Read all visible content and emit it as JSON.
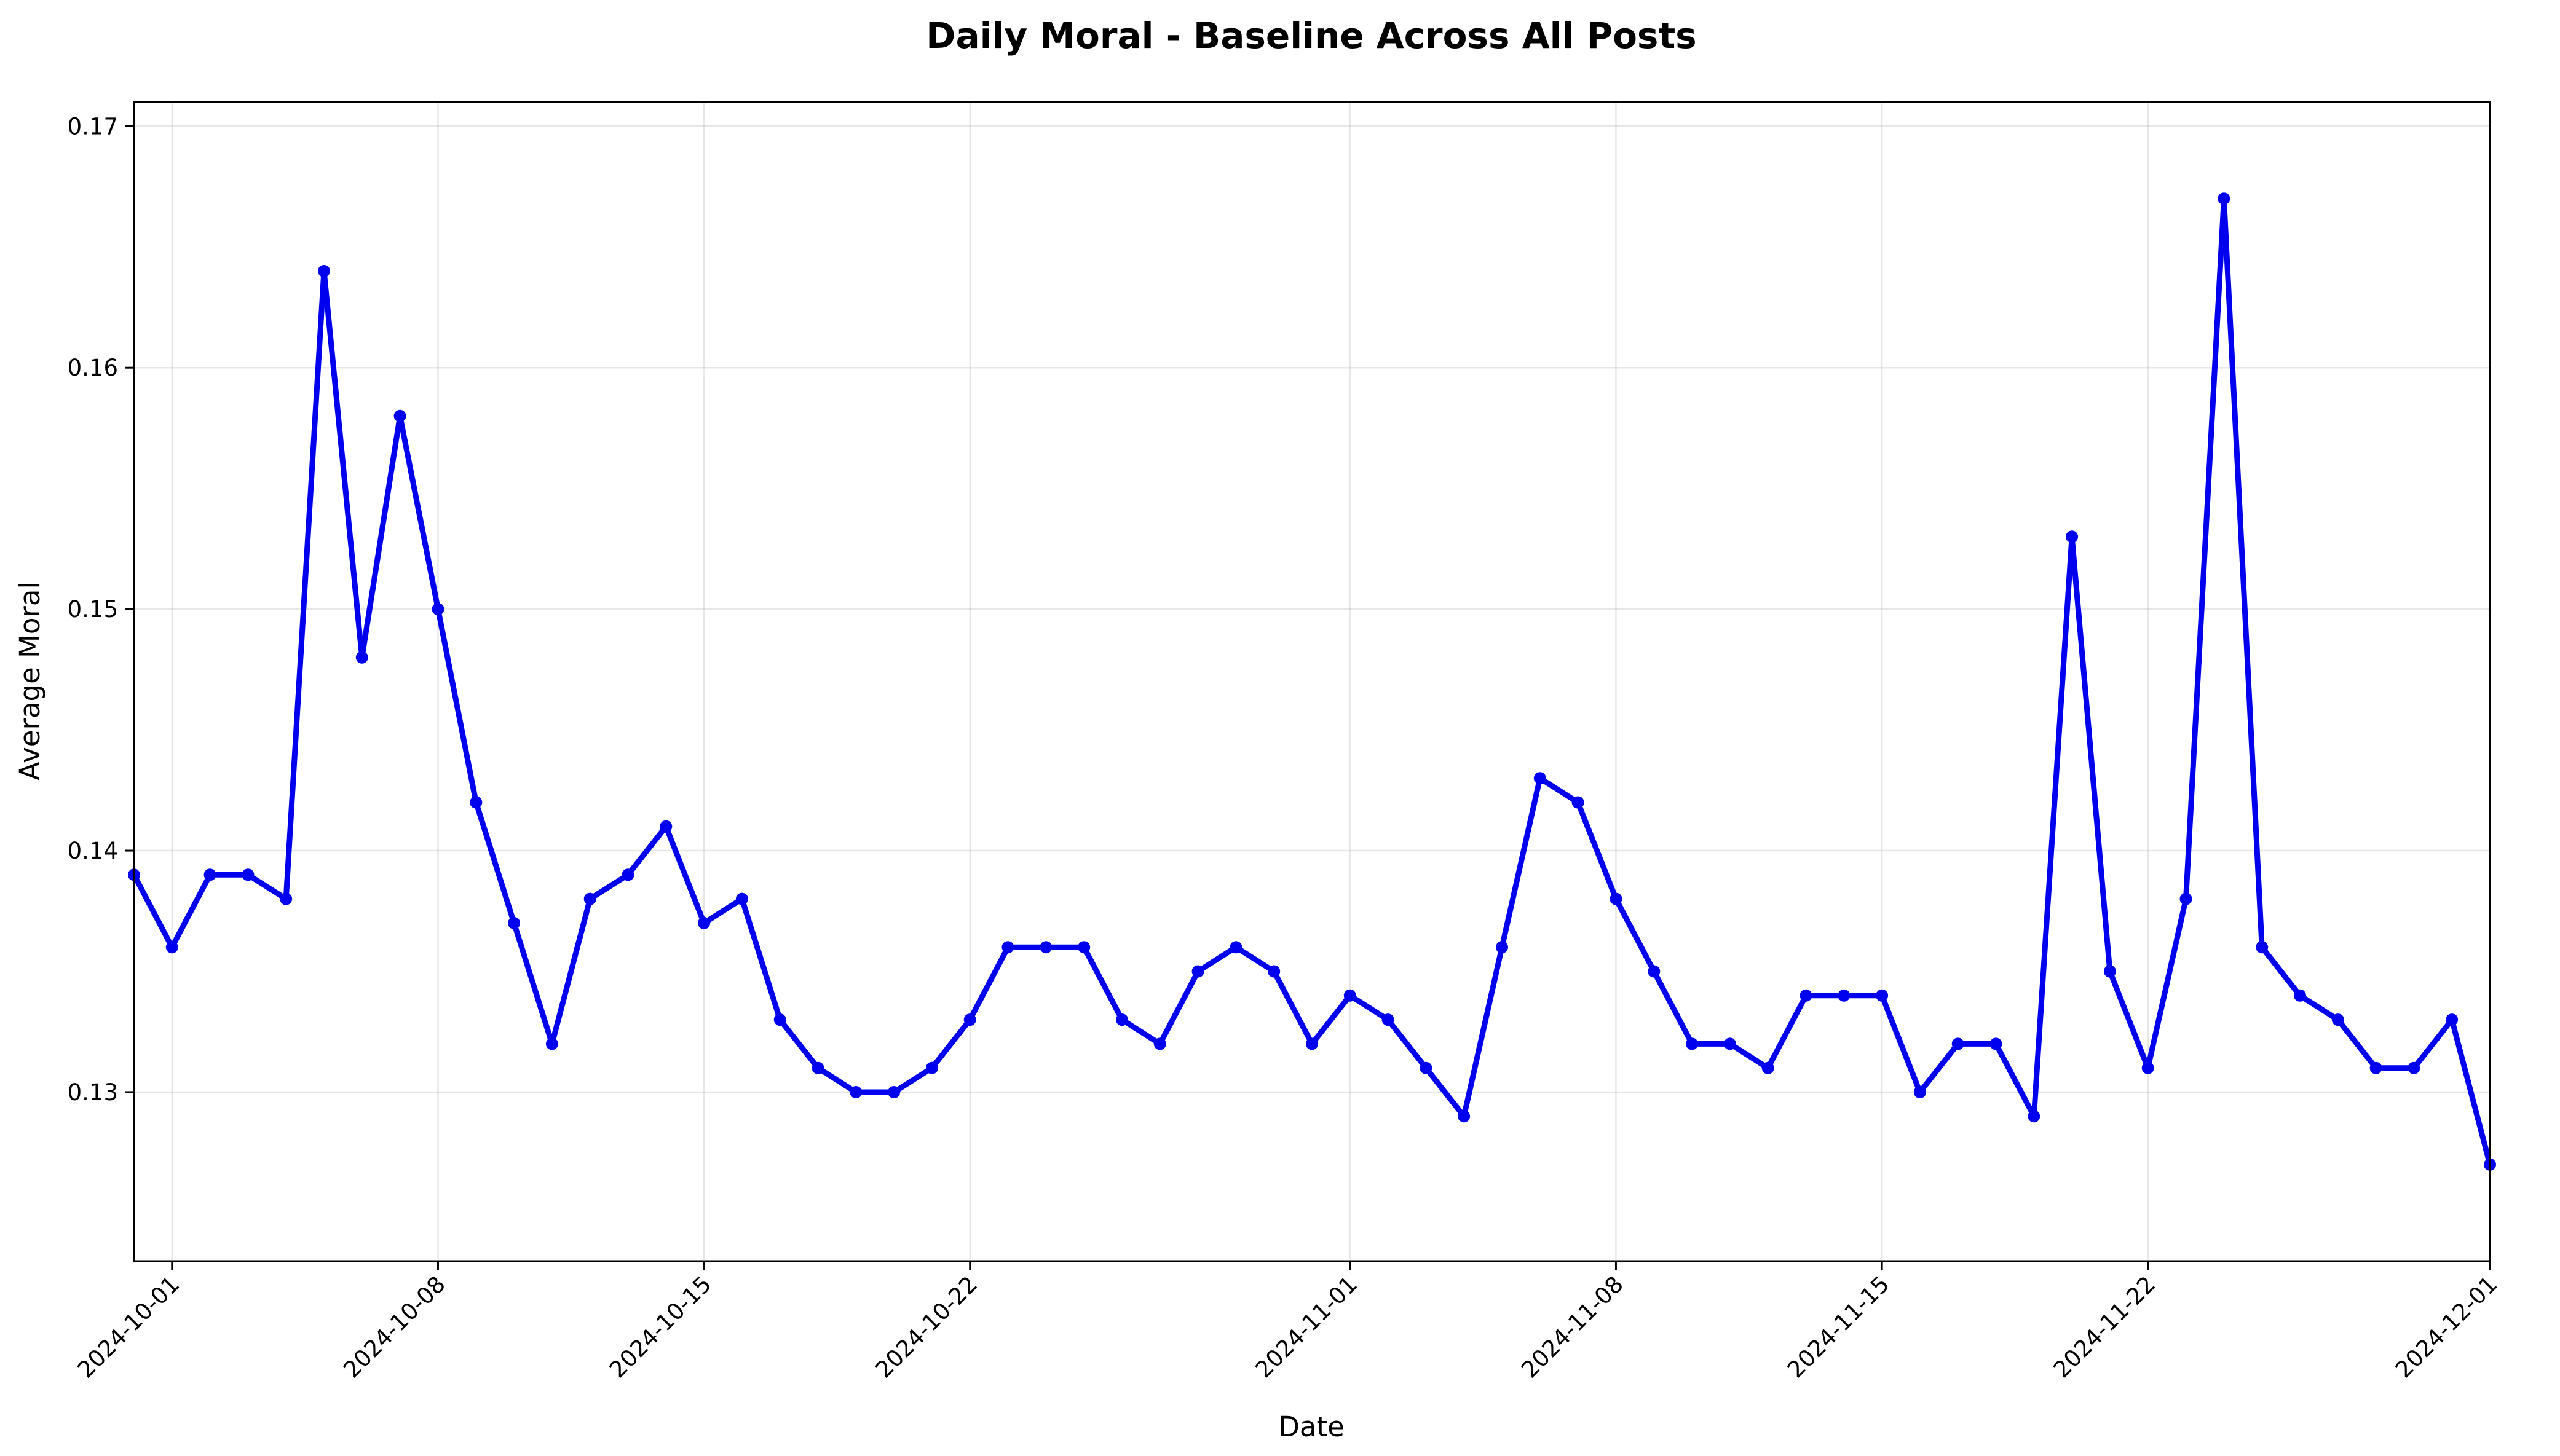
{
  "chart_data": {
    "type": "line",
    "title": "Daily Moral - Baseline Across All Posts",
    "xlabel": "Date",
    "ylabel": "Average Moral",
    "x_start": "2024-09-30",
    "xlim": [
      "2024-09-30",
      "2024-12-01"
    ],
    "ylim": [
      0.123,
      0.171
    ],
    "x_ticks": [
      "2024-10-01",
      "2024-10-08",
      "2024-10-15",
      "2024-10-22",
      "2024-11-01",
      "2024-11-08",
      "2024-11-15",
      "2024-11-22",
      "2024-12-01"
    ],
    "y_ticks": [
      0.13,
      0.14,
      0.15,
      0.16,
      0.17
    ],
    "y_tick_labels": [
      "0.13",
      "0.14",
      "0.15",
      "0.16",
      "0.17"
    ],
    "grid": true,
    "legend": "none",
    "series": [
      {
        "color": "#0000ee",
        "marker": "circle",
        "x": [
          "2024-09-30",
          "2024-10-01",
          "2024-10-02",
          "2024-10-03",
          "2024-10-04",
          "2024-10-05",
          "2024-10-06",
          "2024-10-07",
          "2024-10-08",
          "2024-10-09",
          "2024-10-10",
          "2024-10-11",
          "2024-10-12",
          "2024-10-13",
          "2024-10-14",
          "2024-10-15",
          "2024-10-16",
          "2024-10-17",
          "2024-10-18",
          "2024-10-19",
          "2024-10-20",
          "2024-10-21",
          "2024-10-22",
          "2024-10-23",
          "2024-10-24",
          "2024-10-25",
          "2024-10-26",
          "2024-10-27",
          "2024-10-28",
          "2024-10-29",
          "2024-10-30",
          "2024-10-31",
          "2024-11-01",
          "2024-11-02",
          "2024-11-03",
          "2024-11-04",
          "2024-11-05",
          "2024-11-06",
          "2024-11-07",
          "2024-11-08",
          "2024-11-09",
          "2024-11-10",
          "2024-11-11",
          "2024-11-12",
          "2024-11-13",
          "2024-11-14",
          "2024-11-15",
          "2024-11-16",
          "2024-11-17",
          "2024-11-18",
          "2024-11-19",
          "2024-11-20",
          "2024-11-21",
          "2024-11-22",
          "2024-11-23",
          "2024-11-24",
          "2024-11-25",
          "2024-11-26",
          "2024-11-27",
          "2024-11-28",
          "2024-11-29",
          "2024-11-30",
          "2024-12-01"
        ],
        "values": [
          0.139,
          0.136,
          0.139,
          0.139,
          0.138,
          0.164,
          0.148,
          0.158,
          0.15,
          0.142,
          0.137,
          0.132,
          0.138,
          0.139,
          0.141,
          0.137,
          0.138,
          0.133,
          0.131,
          0.13,
          0.13,
          0.131,
          0.133,
          0.136,
          0.136,
          0.136,
          0.133,
          0.132,
          0.135,
          0.136,
          0.135,
          0.132,
          0.134,
          0.133,
          0.131,
          0.129,
          0.136,
          0.143,
          0.142,
          0.138,
          0.135,
          0.132,
          0.132,
          0.131,
          0.134,
          0.134,
          0.134,
          0.13,
          0.132,
          0.132,
          0.129,
          0.153,
          0.135,
          0.131,
          0.138,
          0.167,
          0.136,
          0.134,
          0.133,
          0.131,
          0.131,
          0.133,
          0.127
        ]
      }
    ]
  }
}
